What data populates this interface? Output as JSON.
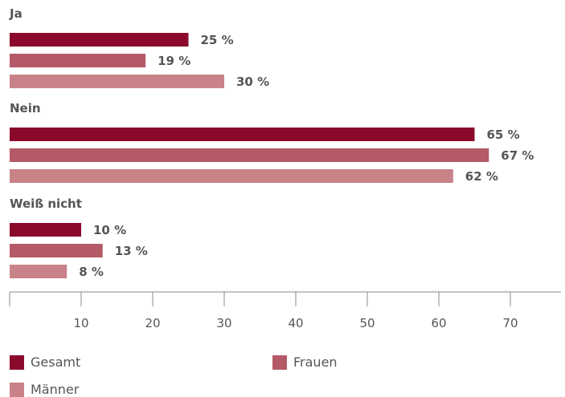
{
  "chart_data": {
    "type": "bar",
    "orientation": "horizontal",
    "categories": [
      "Ja",
      "Nein",
      "Weiß nicht"
    ],
    "series": [
      {
        "name": "Gesamt",
        "values": [
          25,
          65,
          10
        ],
        "labels": [
          "25 %",
          "65 %",
          "10 %"
        ],
        "color": "#8B0A2C"
      },
      {
        "name": "Frauen",
        "values": [
          19,
          67,
          13
        ],
        "labels": [
          "19 %",
          "67 %",
          "13 %"
        ],
        "color": "#B35A66"
      },
      {
        "name": "Männer",
        "values": [
          30,
          62,
          8
        ],
        "labels": [
          "30 %",
          "62 %",
          "8 %"
        ],
        "color": "#C98288"
      }
    ],
    "xticks": [
      "10",
      "20",
      "30",
      "40",
      "50",
      "60",
      "70"
    ],
    "xlim": [
      0,
      77
    ],
    "legend_position": "bottom",
    "grid": false
  }
}
